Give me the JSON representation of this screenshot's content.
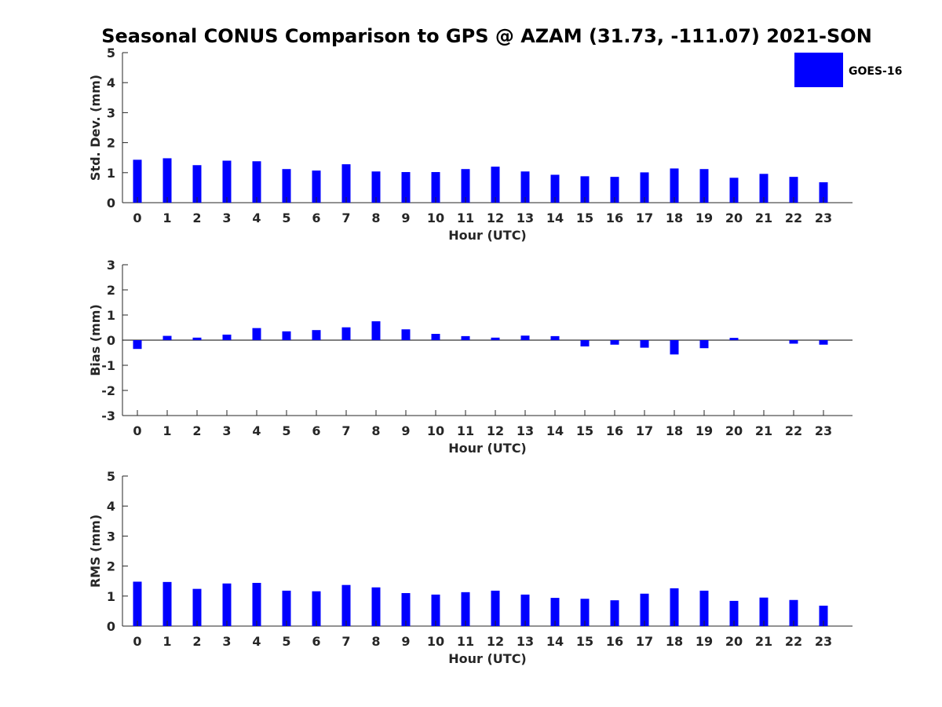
{
  "figure_title": "Seasonal CONUS Comparison to GPS @ AZAM (31.73, -111.07) 2021-SON",
  "colors": {
    "bar": "#0000ff",
    "axis": "#262626"
  },
  "chart_data": [
    {
      "type": "bar",
      "name": "std-dev",
      "categories": [
        "0",
        "1",
        "2",
        "3",
        "4",
        "5",
        "6",
        "7",
        "8",
        "9",
        "10",
        "11",
        "12",
        "13",
        "14",
        "15",
        "16",
        "17",
        "18",
        "19",
        "20",
        "21",
        "22",
        "23"
      ],
      "series": [
        {
          "name": "GOES-16",
          "values": [
            1.43,
            1.48,
            1.25,
            1.4,
            1.38,
            1.12,
            1.07,
            1.28,
            1.04,
            1.02,
            1.02,
            1.12,
            1.2,
            1.04,
            0.93,
            0.88,
            0.86,
            1.01,
            1.14,
            1.12,
            0.83,
            0.96,
            0.86,
            0.68
          ]
        }
      ],
      "xlabel": "Hour (UTC)",
      "ylabel": "Std. Dev. (mm)",
      "ylim": [
        0,
        5
      ],
      "yticks": [
        "0",
        "1",
        "2",
        "3",
        "4",
        "5"
      ],
      "legend": {
        "label": "GOES-16",
        "position": "top-right"
      }
    },
    {
      "type": "bar",
      "name": "bias",
      "categories": [
        "0",
        "1",
        "2",
        "3",
        "4",
        "5",
        "6",
        "7",
        "8",
        "9",
        "10",
        "11",
        "12",
        "13",
        "14",
        "15",
        "16",
        "17",
        "18",
        "19",
        "20",
        "21",
        "22",
        "23"
      ],
      "series": [
        {
          "name": "GOES-16",
          "values": [
            -0.35,
            0.17,
            0.1,
            0.22,
            0.48,
            0.35,
            0.4,
            0.51,
            0.75,
            0.43,
            0.25,
            0.16,
            0.1,
            0.18,
            0.16,
            -0.25,
            -0.18,
            -0.3,
            -0.57,
            -0.32,
            0.09,
            0.0,
            -0.14,
            -0.18
          ]
        }
      ],
      "xlabel": "Hour (UTC)",
      "ylabel": "Bias (mm)",
      "ylim": [
        -3,
        3
      ],
      "yticks": [
        "-3",
        "-2",
        "-1",
        "0",
        "1",
        "2",
        "3"
      ],
      "zero_line": true
    },
    {
      "type": "bar",
      "name": "rms",
      "categories": [
        "0",
        "1",
        "2",
        "3",
        "4",
        "5",
        "6",
        "7",
        "8",
        "9",
        "10",
        "11",
        "12",
        "13",
        "14",
        "15",
        "16",
        "17",
        "18",
        "19",
        "20",
        "21",
        "22",
        "23"
      ],
      "series": [
        {
          "name": "GOES-16",
          "values": [
            1.48,
            1.47,
            1.24,
            1.42,
            1.44,
            1.18,
            1.16,
            1.37,
            1.29,
            1.1,
            1.05,
            1.13,
            1.18,
            1.05,
            0.94,
            0.91,
            0.86,
            1.08,
            1.26,
            1.18,
            0.84,
            0.95,
            0.87,
            0.68
          ]
        }
      ],
      "xlabel": "Hour (UTC)",
      "ylabel": "RMS (mm)",
      "ylim": [
        0,
        5
      ],
      "yticks": [
        "0",
        "1",
        "2",
        "3",
        "4",
        "5"
      ]
    }
  ]
}
